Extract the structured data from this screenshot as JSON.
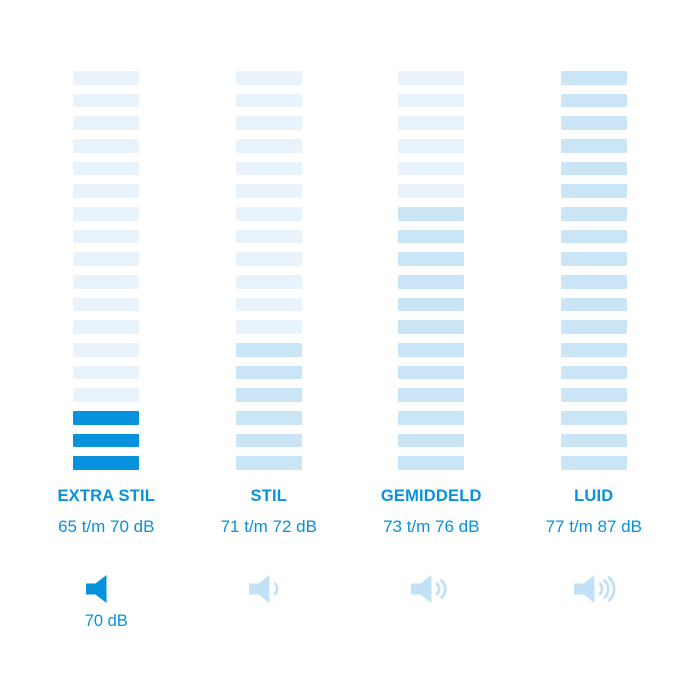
{
  "page": {
    "background": "#ffffff"
  },
  "colors": {
    "background": "#ffffff",
    "accent": "#0891dc",
    "bar_base": "#e8f3fb",
    "bar_medium": "#c9e5f6",
    "bar_bright": "#0891dc",
    "icon_light": "#c0e1f6"
  },
  "chart_data": {
    "type": "bar",
    "title": "",
    "categories": [
      "EXTRA STIL",
      "STIL",
      "GEMIDDELD",
      "LUID"
    ],
    "ranges_db": [
      "65 t/m 70 dB",
      "71 t/m 72 dB",
      "73 t/m 76 dB",
      "77 t/m 87 dB"
    ],
    "range_min_db": [
      65,
      71,
      73,
      77
    ],
    "range_max_db": [
      70,
      72,
      76,
      87
    ],
    "segments_total": 18,
    "segments_highlighted": [
      3,
      6,
      12,
      18
    ],
    "highlight_styles": [
      "bright",
      "medium",
      "medium",
      "medium"
    ],
    "selected_value_label": "70 dB",
    "orientation": "vertical-segment-stacks",
    "legend": "none",
    "grid": false
  },
  "columns": [
    {
      "label": "EXTRA STIL",
      "range": "65 t/m 70 dB",
      "highlighted_segments": 3,
      "highlight_style": "bright",
      "icon": "speaker-muted-icon",
      "waves": 0,
      "icon_color_role": "accent",
      "caption": "70 dB"
    },
    {
      "label": "STIL",
      "range": "71 t/m 72 dB",
      "highlighted_segments": 6,
      "highlight_style": "medium",
      "icon": "speaker-low-volume-icon",
      "waves": 1,
      "icon_color_role": "icon_light",
      "caption": ""
    },
    {
      "label": "GEMIDDELD",
      "range": "73 t/m 76 dB",
      "highlighted_segments": 12,
      "highlight_style": "medium",
      "icon": "speaker-medium-volume-icon",
      "waves": 2,
      "icon_color_role": "icon_light",
      "caption": ""
    },
    {
      "label": "LUID",
      "range": "77 t/m 87 dB",
      "highlighted_segments": 18,
      "highlight_style": "medium",
      "icon": "speaker-loud-volume-icon",
      "waves": 3,
      "icon_color_role": "icon_light",
      "caption": ""
    }
  ]
}
